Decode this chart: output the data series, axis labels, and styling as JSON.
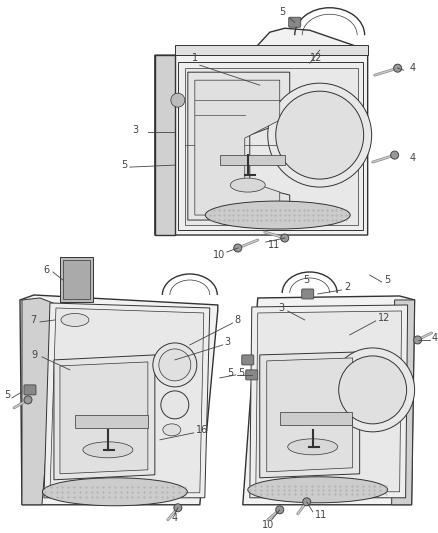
{
  "background_color": "#ffffff",
  "line_color": "#444444",
  "figsize": [
    4.38,
    5.33
  ],
  "dpi": 100,
  "font_size": 7,
  "panel_face": "#f2f2f2",
  "panel_edge": "#333333",
  "inner_face": "#e8e8e8",
  "handle_face": "#e0e0e0",
  "grille_face": "#cccccc",
  "screw_face": "#bbbbbb"
}
